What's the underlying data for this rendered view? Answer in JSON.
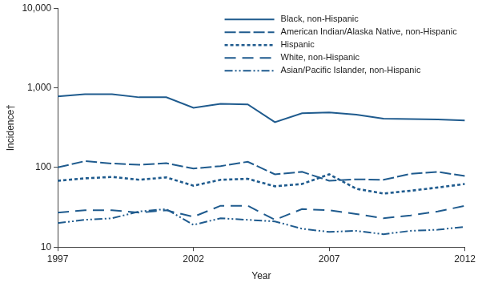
{
  "chart_data": {
    "type": "line",
    "x_label": "Year",
    "y_label": "Incidence†",
    "log": "y",
    "grid": false,
    "legend": "upper right",
    "xlim": [
      1997,
      2012
    ],
    "xticks": [
      1997,
      2002,
      2007,
      2012
    ],
    "ylim": [
      10,
      10000
    ],
    "yticks": [
      10,
      100,
      {
        "value": 1000,
        "label": "1,000"
      },
      {
        "value": 10000,
        "label": "10,000"
      }
    ],
    "x": [
      1997,
      1998,
      1999,
      2000,
      2001,
      2002,
      2003,
      2004,
      2005,
      2006,
      2007,
      2008,
      2009,
      2010,
      2011,
      2012
    ],
    "series": [
      {
        "name": "Black, non-Hispanic",
        "color": "#1f5b8e",
        "line_style": "solid",
        "values": [
          780,
          830,
          830,
          760,
          760,
          560,
          630,
          620,
          370,
          480,
          490,
          460,
          410,
          405,
          400,
          390
        ]
      },
      {
        "name": "American Indian/Alaska Native, non-Hispanic",
        "color": "#1f5b8e",
        "line_style": "longdash",
        "values": [
          100,
          120,
          112,
          108,
          113,
          97,
          104,
          118,
          82,
          88,
          68,
          71,
          70,
          83,
          88,
          78
        ]
      },
      {
        "name": "Hispanic",
        "color": "#1f5b8e",
        "line_style": "dash",
        "values": [
          68,
          73,
          76,
          70,
          75,
          59,
          70,
          72,
          58,
          62,
          82,
          54,
          47,
          51,
          56,
          62
        ]
      },
      {
        "name": "White, non-Hispanic",
        "color": "#1f5b8e",
        "line_style": "widedash",
        "values": [
          27,
          29,
          29,
          27,
          29,
          24,
          33,
          33,
          22,
          30,
          29,
          26,
          23,
          25,
          28,
          33
        ]
      },
      {
        "name": "Asian/Pacific Islander, non-Hispanic",
        "color": "#1f5b8e",
        "line_style": "dashdotdot",
        "values": [
          20,
          22,
          23,
          28,
          30,
          19,
          23,
          22,
          21,
          17,
          15.5,
          16,
          14.5,
          16,
          16.5,
          18
        ]
      }
    ]
  }
}
